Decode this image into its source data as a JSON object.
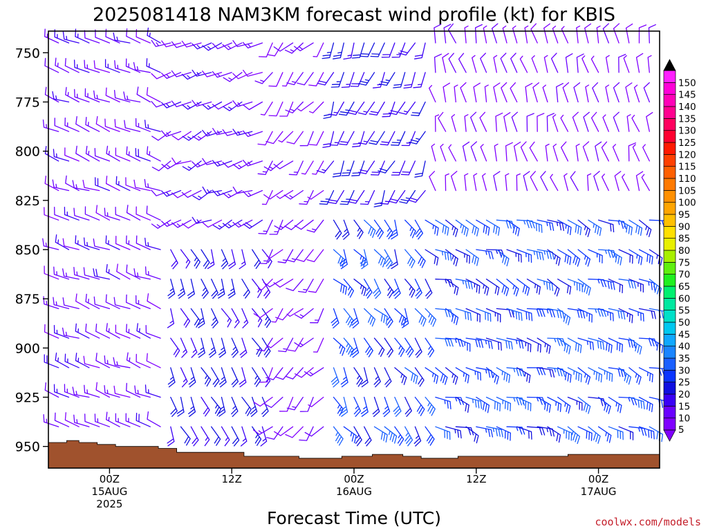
{
  "title": "2025081418 NAM3KM forecast wind profile (kt) for KBIS",
  "credit": "coolwx.com/models",
  "chart_data": {
    "type": "wind-barb-profile",
    "title": "2025081418 NAM3KM forecast wind profile (kt) for KBIS",
    "xlabel": "Forecast Time (UTC)",
    "ylabel": "",
    "ylim": [
      961,
      739
    ],
    "y_ticks": [
      "750",
      "775",
      "800",
      "825",
      "850",
      "875",
      "900",
      "925",
      "950"
    ],
    "x_ticks": [
      {
        "hour": 0,
        "lines": [
          "00Z",
          "15AUG",
          "2025"
        ]
      },
      {
        "hour": 12,
        "lines": [
          "12Z"
        ]
      },
      {
        "hour": 24,
        "lines": [
          "00Z",
          "16AUG"
        ]
      },
      {
        "hour": 36,
        "lines": [
          "12Z"
        ]
      },
      {
        "hour": 48,
        "lines": [
          "00Z",
          "17AUG"
        ]
      }
    ],
    "time_range_hours": [
      -6,
      54
    ],
    "run_time": "2025081418",
    "model": "NAM3KM",
    "station": "KBIS",
    "units": "kt",
    "colorbar": {
      "labels": [
        "5",
        "10",
        "15",
        "20",
        "25",
        "30",
        "35",
        "40",
        "45",
        "50",
        "55",
        "60",
        "65",
        "70",
        "75",
        "80",
        "85",
        "90",
        "95",
        "100",
        "105",
        "110",
        "115",
        "120",
        "125",
        "130",
        "135",
        "140",
        "145",
        "150"
      ],
      "colors": [
        "#8000ff",
        "#6a00ff",
        "#3a00f5",
        "#1010e0",
        "#0a35ff",
        "#1a60ff",
        "#1a85ff",
        "#10a8ff",
        "#00c8f0",
        "#00e0c8",
        "#00e8a0",
        "#00f070",
        "#20f020",
        "#60f010",
        "#a8f000",
        "#e8f000",
        "#ffe000",
        "#ffc000",
        "#ffa500",
        "#ff9000",
        "#ff7a00",
        "#ff6000",
        "#ff4000",
        "#ff1a00",
        "#ff0030",
        "#ff0060",
        "#ff0090",
        "#ff00b8",
        "#ff00d8",
        "#ff20ff"
      ]
    },
    "terrain_pressure": [
      {
        "hour": -6.0,
        "p": 948
      },
      {
        "hour": -4.2,
        "p": 948
      },
      {
        "hour": -4.2,
        "p": 947
      },
      {
        "hour": -3.0,
        "p": 947
      },
      {
        "hour": -3.0,
        "p": 948
      },
      {
        "hour": -1.2,
        "p": 948
      },
      {
        "hour": -1.2,
        "p": 949
      },
      {
        "hour": 0.6,
        "p": 949
      },
      {
        "hour": 0.6,
        "p": 950
      },
      {
        "hour": 4.8,
        "p": 950
      },
      {
        "hour": 4.8,
        "p": 951
      },
      {
        "hour": 6.6,
        "p": 951
      },
      {
        "hour": 6.6,
        "p": 953
      },
      {
        "hour": 13.2,
        "p": 953
      },
      {
        "hour": 13.2,
        "p": 955
      },
      {
        "hour": 18.6,
        "p": 955
      },
      {
        "hour": 18.6,
        "p": 956
      },
      {
        "hour": 22.8,
        "p": 956
      },
      {
        "hour": 22.8,
        "p": 955
      },
      {
        "hour": 25.8,
        "p": 955
      },
      {
        "hour": 25.8,
        "p": 954
      },
      {
        "hour": 28.8,
        "p": 954
      },
      {
        "hour": 28.8,
        "p": 955
      },
      {
        "hour": 30.6,
        "p": 955
      },
      {
        "hour": 30.6,
        "p": 956
      },
      {
        "hour": 34.2,
        "p": 956
      },
      {
        "hour": 34.2,
        "p": 955
      },
      {
        "hour": 45.0,
        "p": 955
      },
      {
        "hour": 45.0,
        "p": 954
      },
      {
        "hour": 54.0,
        "p": 954
      }
    ],
    "barb_levels": [
      745,
      760,
      775,
      790,
      805,
      820,
      835,
      850,
      865,
      880,
      895,
      910,
      925,
      940
    ],
    "barb_times": [
      -5,
      -4,
      -3,
      -2,
      -1,
      0,
      1,
      2,
      3,
      4,
      5,
      6,
      7,
      8,
      9,
      10,
      11,
      12,
      13,
      14,
      15,
      16,
      17,
      18,
      19,
      20,
      21,
      22,
      23,
      24,
      25,
      26,
      27,
      28,
      29,
      30,
      31,
      32,
      33,
      34,
      35,
      36,
      37,
      38,
      39,
      40,
      41,
      42,
      43,
      44,
      45,
      46,
      47,
      48,
      49,
      50,
      51,
      52,
      53
    ],
    "wind_regimes": [
      {
        "hours": [
          -6,
          6
        ],
        "levels": [
          739,
          961
        ],
        "dir_deg": [
          280,
          300
        ],
        "speed_kt": [
          8,
          18
        ]
      },
      {
        "hours": [
          6,
          16
        ],
        "levels": [
          739,
          840
        ],
        "dir_deg": [
          230,
          260
        ],
        "speed_kt": [
          8,
          18
        ]
      },
      {
        "hours": [
          6,
          16
        ],
        "levels": [
          840,
          961
        ],
        "dir_deg": [
          140,
          170
        ],
        "speed_kt": [
          15,
          25
        ]
      },
      {
        "hours": [
          16,
          22
        ],
        "levels": [
          739,
          961
        ],
        "dir_deg": [
          200,
          240
        ],
        "speed_kt": [
          5,
          15
        ]
      },
      {
        "hours": [
          22,
          32
        ],
        "levels": [
          739,
          830
        ],
        "dir_deg": [
          190,
          220
        ],
        "speed_kt": [
          15,
          25
        ]
      },
      {
        "hours": [
          22,
          32
        ],
        "levels": [
          830,
          961
        ],
        "dir_deg": [
          120,
          170
        ],
        "speed_kt": [
          20,
          35
        ]
      },
      {
        "hours": [
          32,
          54
        ],
        "levels": [
          739,
          830
        ],
        "dir_deg": [
          330,
          360
        ],
        "speed_kt": [
          5,
          12
        ]
      },
      {
        "hours": [
          32,
          54
        ],
        "levels": [
          830,
          961
        ],
        "dir_deg": [
          90,
          130
        ],
        "speed_kt": [
          20,
          35
        ]
      }
    ]
  }
}
